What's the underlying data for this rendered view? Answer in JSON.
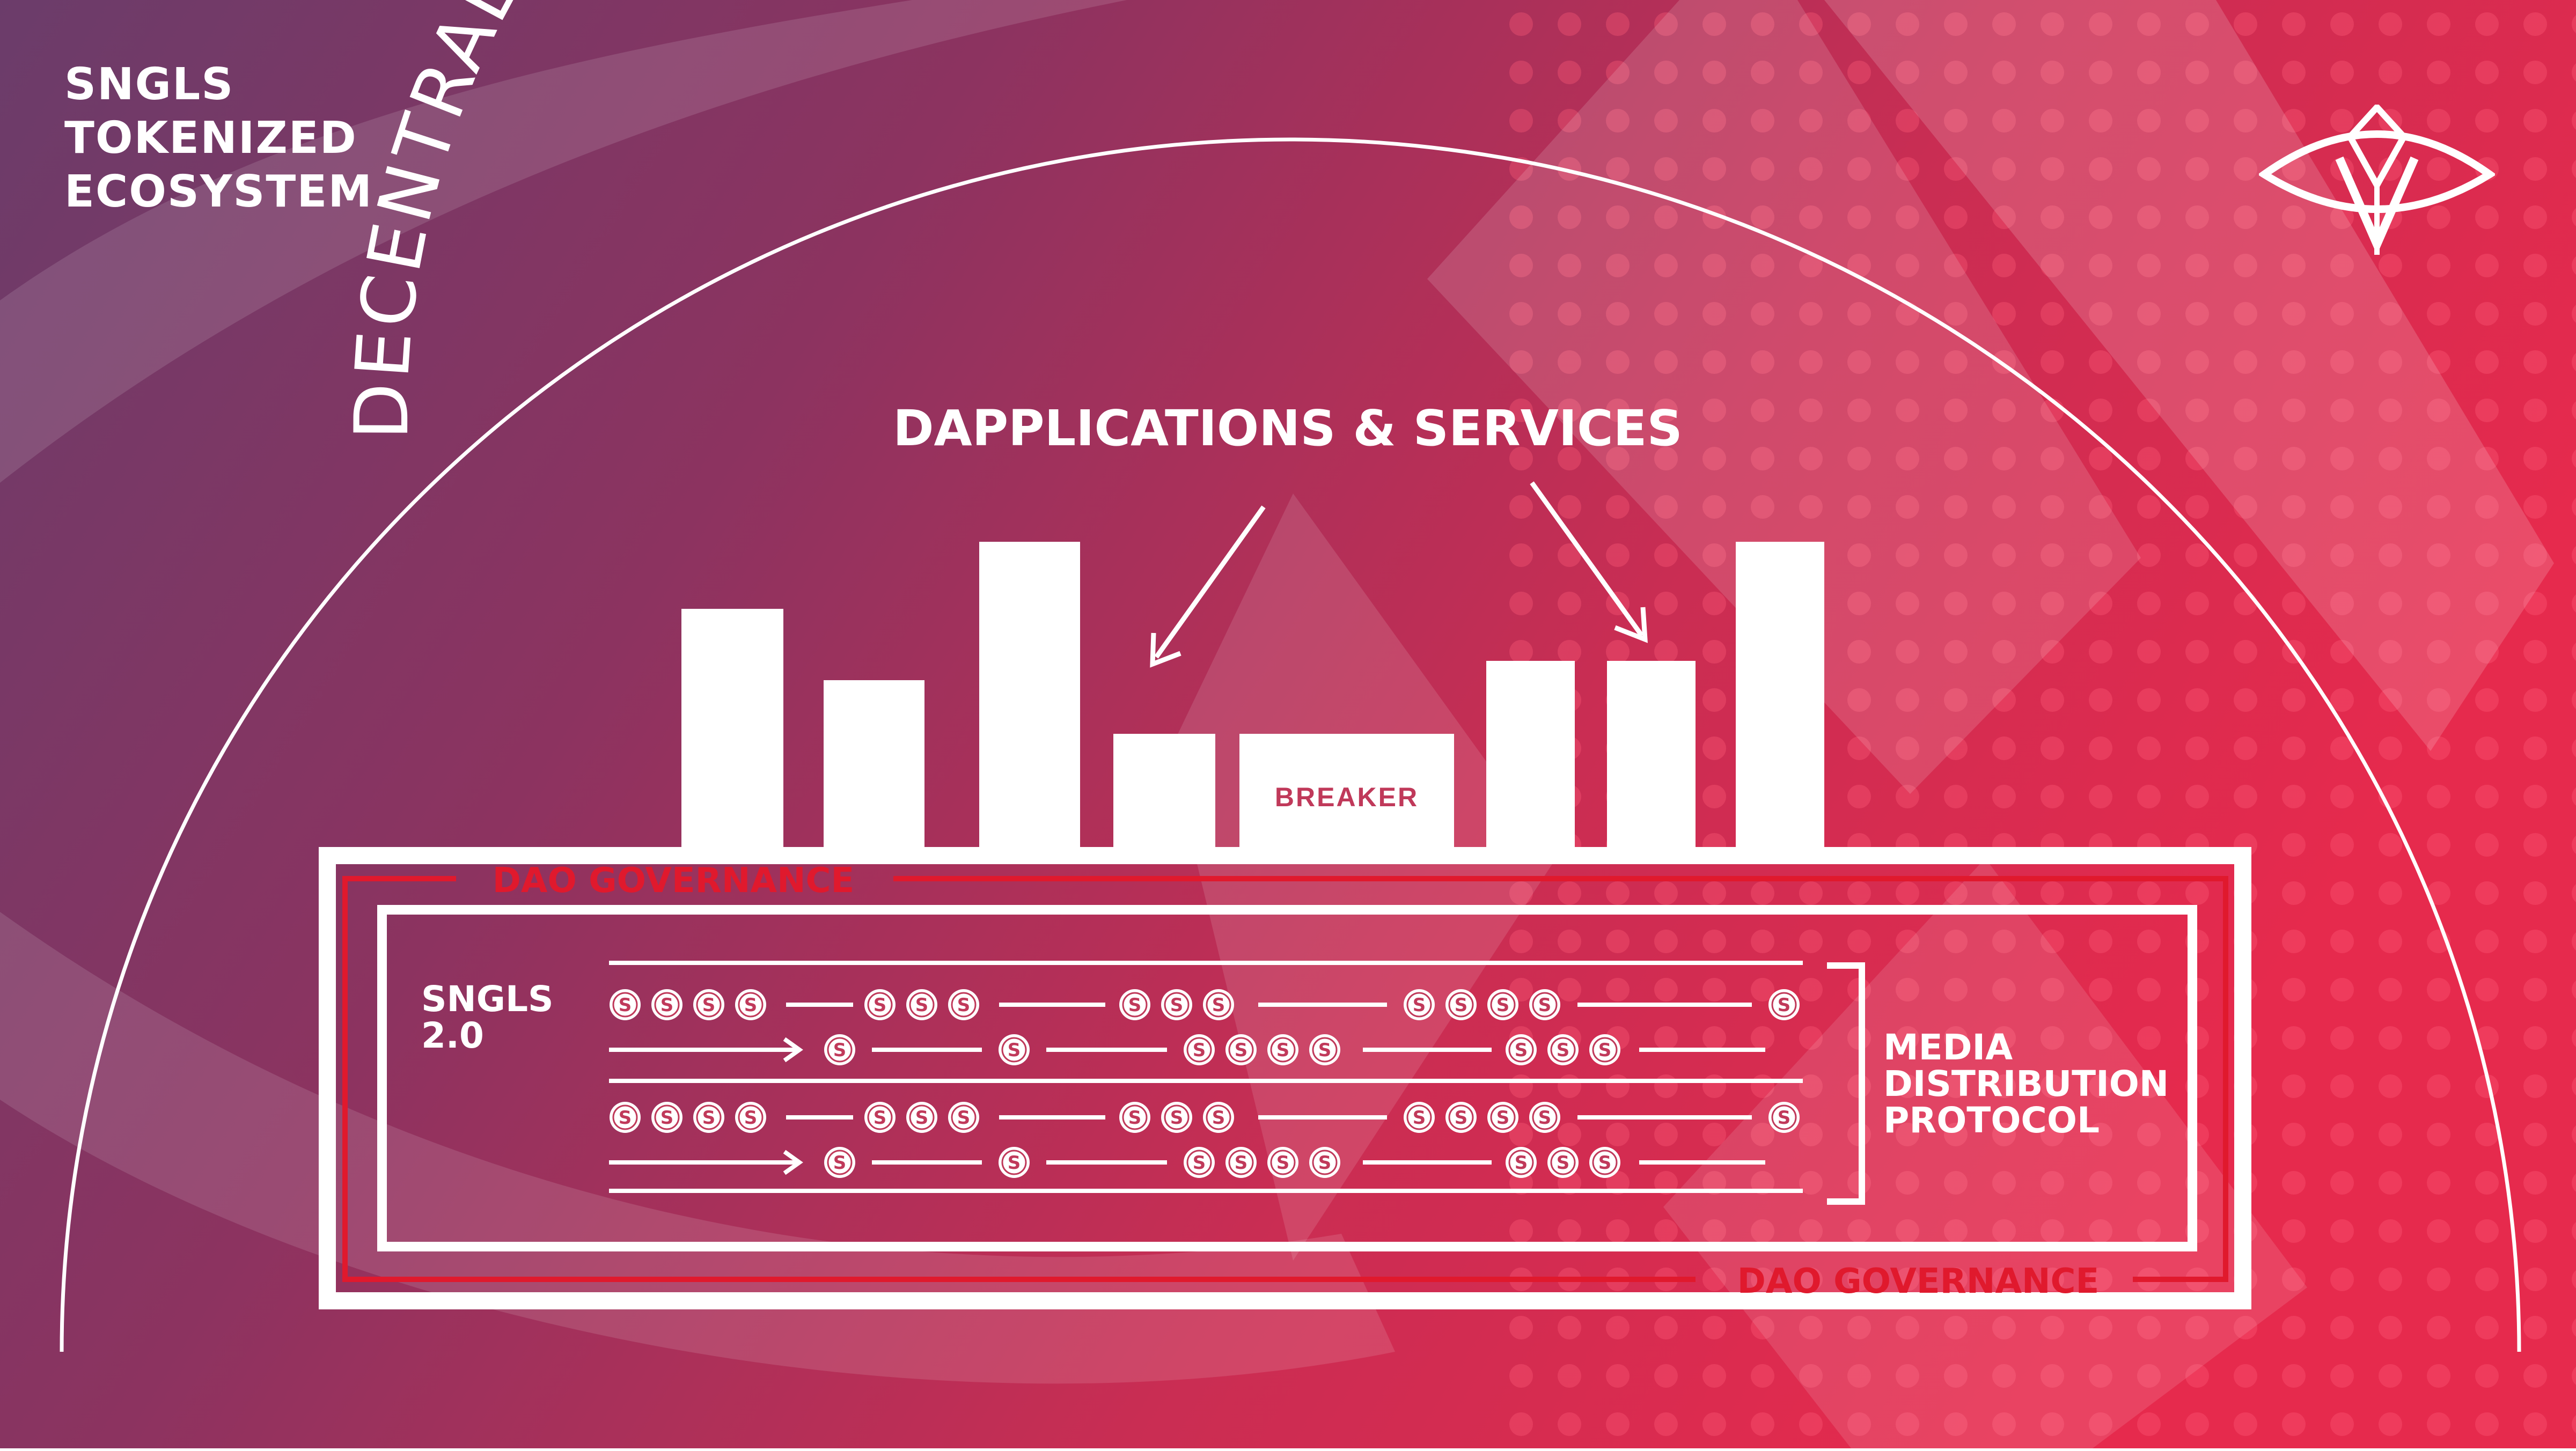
{
  "title_lines": [
    "SNGLS",
    "TOKENIZED",
    "ECOSYSTEM"
  ],
  "arc_text": "DECENTRALIZED ENTERTAINMENT INDUSTRY",
  "dapps_label": "DAPPLICATIONS & SERVICES",
  "breaker_label": "BREAKER",
  "dao_label_top": "DAO GOVERNANCE",
  "dao_label_bottom": "DAO GOVERNANCE",
  "sngls_label": [
    "SNGLS",
    "2.0"
  ],
  "token_symbol": "S",
  "protocol_label": [
    "MEDIA",
    "DISTRIBUTION",
    "PROTOCOL"
  ],
  "colors": {
    "bg_left": "#6e3b6b",
    "bg_right": "#e8294e",
    "accent_red": "#e0192d",
    "white": "#ffffff",
    "breaker_text": "#c0395a"
  },
  "icons": [
    "eye-logo-icon",
    "arrow-icon",
    "token-coin-icon"
  ]
}
